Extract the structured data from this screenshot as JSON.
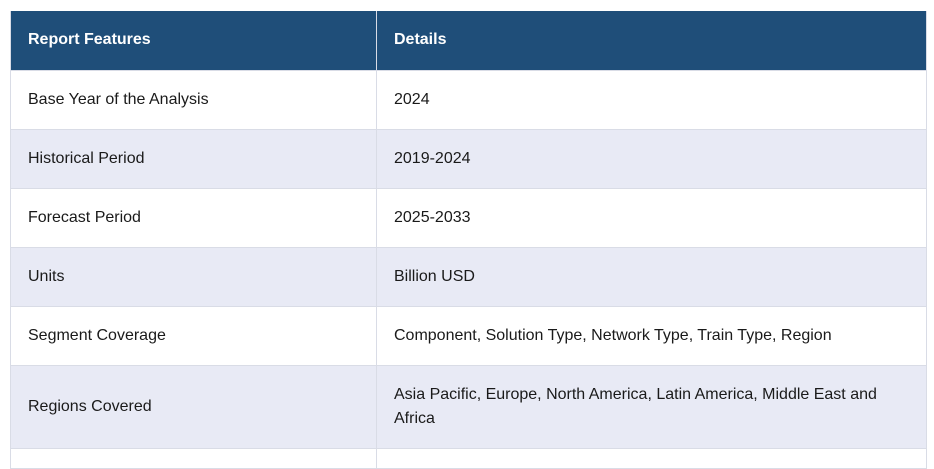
{
  "table": {
    "headers": [
      "Report Features",
      "Details"
    ],
    "rows": [
      {
        "feature": "Base Year of the Analysis",
        "details": "2024"
      },
      {
        "feature": "Historical Period",
        "details": "2019-2024"
      },
      {
        "feature": "Forecast Period",
        "details": "2025-2033"
      },
      {
        "feature": "Units",
        "details": "Billion USD"
      },
      {
        "feature": "Segment Coverage",
        "details": "Component, Solution Type, Network Type, Train Type, Region"
      },
      {
        "feature": "Regions Covered",
        "details": "Asia Pacific, Europe, North America, Latin America, Middle East and Africa"
      }
    ]
  },
  "colors": {
    "header_bg": "#1f4e79",
    "header_text": "#ffffff",
    "row_alt_bg": "#e8eaf5",
    "border": "#d9dce6"
  }
}
